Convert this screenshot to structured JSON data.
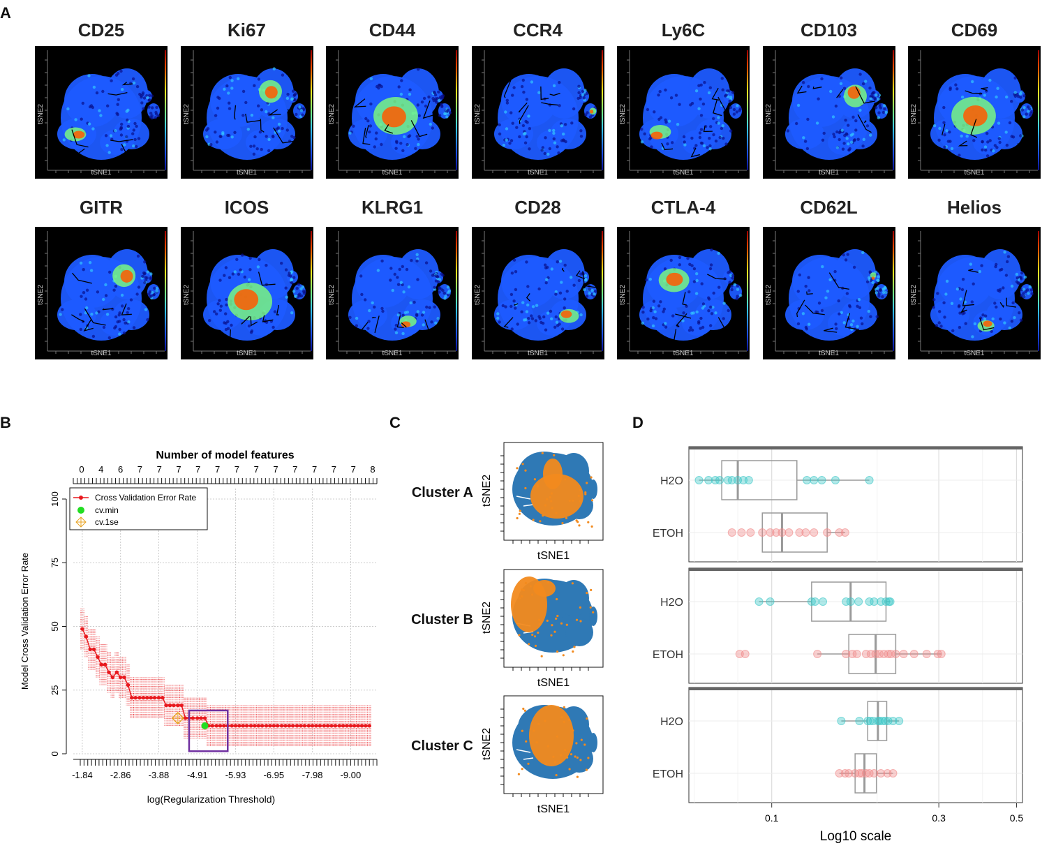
{
  "panel_labels": {
    "a": "A",
    "b": "B",
    "c": "C",
    "d": "D"
  },
  "panel_a": {
    "markers_row1": [
      "CD25",
      "Ki67",
      "CD44",
      "CCR4",
      "Ly6C",
      "CD103",
      "CD69"
    ],
    "markers_row2": [
      "GITR",
      "ICOS",
      "KLRG1",
      "CD28",
      "CTLA-4",
      "CD62L",
      "Helios"
    ],
    "xlabel": "tSNE1",
    "ylabel": "tSNE2",
    "colormap": [
      "#08108c",
      "#1e5bff",
      "#33c4ff",
      "#7fff7a",
      "#ffe81a",
      "#ff5a00",
      "#a00000"
    ]
  },
  "chart_data": [
    {
      "panel": "B",
      "type": "line",
      "title": "Number of model features",
      "top_ticks": [
        "0",
        "4",
        "6",
        "7",
        "7",
        "7",
        "7",
        "7",
        "7",
        "7",
        "7",
        "7",
        "7",
        "7",
        "7",
        "8"
      ],
      "xlabel": "log(Regularization Threshold)",
      "ylabel": "Model Cross Validation Error Rate",
      "x_ticks": [
        "-1.84",
        "-2.86",
        "-3.88",
        "-4.91",
        "-5.93",
        "-6.95",
        "-7.98",
        "-9.00"
      ],
      "y_ticks": [
        "0",
        "25",
        "50",
        "75",
        "100"
      ],
      "ylim": [
        0,
        100
      ],
      "xlim": [
        -1.6,
        -9.7
      ],
      "legend": {
        "position": "top-left",
        "entries": [
          "Cross Validation Error Rate",
          "cv.min",
          "cv.1se"
        ]
      },
      "colors": {
        "series": "#e8191e",
        "cv_min": "#22dd22",
        "cv_1se": "#e8a323",
        "box": "#7030a0"
      },
      "series": {
        "name": "Cross Validation Error Rate",
        "x": [
          -1.84,
          -1.94,
          -2.05,
          -2.15,
          -2.25,
          -2.35,
          -2.45,
          -2.55,
          -2.65,
          -2.76,
          -2.86,
          -2.96,
          -3.06,
          -3.16,
          -3.26,
          -3.37,
          -3.47,
          -3.57,
          -3.67,
          -3.77,
          -3.88,
          -3.98,
          -4.08,
          -4.18,
          -4.28,
          -4.39,
          -4.49,
          -4.59,
          -4.69,
          -4.79,
          -4.91,
          -5.01,
          -5.11,
          -5.21,
          -5.31,
          -5.42,
          -5.52,
          -5.62,
          -5.72,
          -5.83,
          -5.93,
          -6.03,
          -6.13,
          -6.23,
          -6.34,
          -6.44,
          -6.54,
          -6.64,
          -6.75,
          -6.85,
          -6.95,
          -7.05,
          -7.16,
          -7.26,
          -7.36,
          -7.46,
          -7.57,
          -7.67,
          -7.77,
          -7.88,
          -7.98,
          -8.08,
          -8.18,
          -8.29,
          -8.39,
          -8.49,
          -8.59,
          -8.7,
          -8.8,
          -8.9,
          -9.0,
          -9.1,
          -9.2,
          -9.3,
          -9.4,
          -9.5
        ],
        "y": [
          49,
          46,
          41,
          41,
          38,
          35,
          35,
          32,
          30,
          32,
          30,
          30,
          27,
          22,
          22,
          22,
          22,
          22,
          22,
          22,
          22,
          22,
          19,
          19,
          19,
          19,
          19,
          14,
          14,
          14,
          14,
          14,
          14,
          11,
          11,
          11,
          11,
          11,
          11,
          11,
          11,
          11,
          11,
          11,
          11,
          11,
          11,
          11,
          11,
          11,
          11,
          11,
          11,
          11,
          11,
          11,
          11,
          11,
          11,
          11,
          11,
          11,
          11,
          11,
          11,
          11,
          11,
          11,
          11,
          11,
          11,
          11,
          11,
          11,
          11,
          11
        ],
        "error": 8
      },
      "cv_min": {
        "x": -5.11,
        "y": 11
      },
      "cv_1se": {
        "x": -4.39,
        "y": 14
      },
      "highlight_box": {
        "x0": -4.69,
        "x1": -5.72,
        "y0": 1,
        "y1": 17
      }
    },
    {
      "panel": "C",
      "type": "scatter",
      "clusters": [
        "Cluster A",
        "Cluster B",
        "Cluster C"
      ],
      "xlabel": "tSNE1",
      "ylabel": "tSNE2",
      "colors": {
        "background": "#2f79b5",
        "highlight": "#f28a1e"
      }
    },
    {
      "panel": "D",
      "type": "box",
      "xlabel": "Log10 scale",
      "x_scale": "log10",
      "xlim": [
        0.058,
        0.52
      ],
      "x_ticks": [
        0.1,
        0.3,
        0.5
      ],
      "x_tick_labels": [
        "0.1",
        "0.3",
        "0.5"
      ],
      "groups": [
        "H2O",
        "ETOH"
      ],
      "colors": {
        "H2O": "#3cc7c7",
        "ETOH": "#f08a8a",
        "box": "#9a9a9a"
      },
      "facets": [
        {
          "H2O": {
            "q1": 0.072,
            "median": 0.08,
            "q3": 0.118,
            "whisker_low": 0.062,
            "whisker_high": 0.19,
            "points": [
              0.062,
              0.066,
              0.069,
              0.071,
              0.075,
              0.077,
              0.08,
              0.083,
              0.086,
              0.126,
              0.132,
              0.139,
              0.152,
              0.19
            ]
          },
          "ETOH": {
            "q1": 0.094,
            "median": 0.107,
            "q3": 0.144,
            "whisker_low": 0.094,
            "whisker_high": 0.162,
            "points": [
              0.077,
              0.082,
              0.087,
              0.094,
              0.099,
              0.103,
              0.107,
              0.112,
              0.12,
              0.125,
              0.132,
              0.144,
              0.156,
              0.162
            ]
          }
        },
        {
          "H2O": {
            "q1": 0.13,
            "median": 0.168,
            "q3": 0.212,
            "whisker_low": 0.092,
            "whisker_high": 0.218,
            "points": [
              0.092,
              0.099,
              0.13,
              0.133,
              0.14,
              0.163,
              0.168,
              0.177,
              0.19,
              0.196,
              0.205,
              0.212,
              0.216,
              0.218
            ]
          },
          "ETOH": {
            "q1": 0.166,
            "median": 0.198,
            "q3": 0.226,
            "whisker_low": 0.135,
            "whisker_high": 0.305,
            "points": [
              0.081,
              0.084,
              0.135,
              0.163,
              0.17,
              0.175,
              0.186,
              0.192,
              0.198,
              0.203,
              0.209,
              0.215,
              0.219,
              0.226,
              0.238,
              0.255,
              0.277,
              0.298,
              0.305
            ]
          }
        },
        {
          "H2O": {
            "q1": 0.188,
            "median": 0.201,
            "q3": 0.213,
            "whisker_low": 0.158,
            "whisker_high": 0.231,
            "points": [
              0.158,
              0.178,
              0.188,
              0.191,
              0.195,
              0.201,
              0.203,
              0.207,
              0.211,
              0.215,
              0.222,
              0.231
            ]
          },
          "ETOH": {
            "q1": 0.173,
            "median": 0.184,
            "q3": 0.199,
            "whisker_low": 0.156,
            "whisker_high": 0.222,
            "points": [
              0.156,
              0.162,
              0.166,
              0.173,
              0.178,
              0.181,
              0.186,
              0.19,
              0.196,
              0.205,
              0.214,
              0.222
            ]
          }
        }
      ]
    }
  ]
}
